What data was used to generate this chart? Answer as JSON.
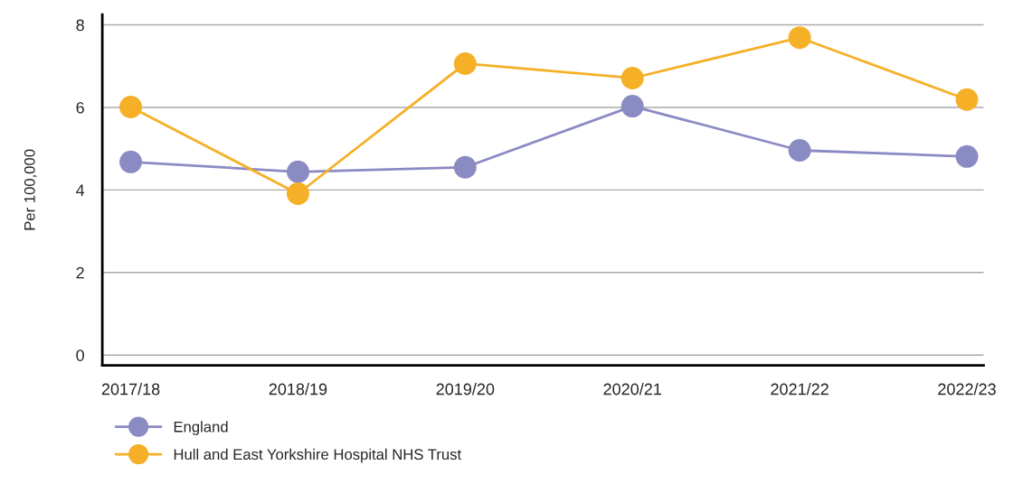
{
  "chart_data": {
    "type": "line",
    "ylabel": "Per 100,000",
    "categories": [
      "2017/18",
      "2018/19",
      "2019/20",
      "2020/21",
      "2021/22",
      "2022/23"
    ],
    "series": [
      {
        "name": "England",
        "color": "#8b8bc4",
        "values": [
          4.68,
          4.44,
          4.55,
          6.03,
          4.96,
          4.81
        ]
      },
      {
        "name": "Hull and East Yorkshire Hospital NHS Trust",
        "color": "#f5b027",
        "values": [
          6.01,
          3.91,
          7.06,
          6.71,
          7.69,
          6.19
        ]
      }
    ],
    "ylim": [
      -0.25,
      8.25
    ],
    "yticks": [
      0,
      2,
      4,
      6,
      8
    ],
    "grid": "y",
    "legend": "bottom left",
    "marker": "circle",
    "line_style": "solid"
  }
}
